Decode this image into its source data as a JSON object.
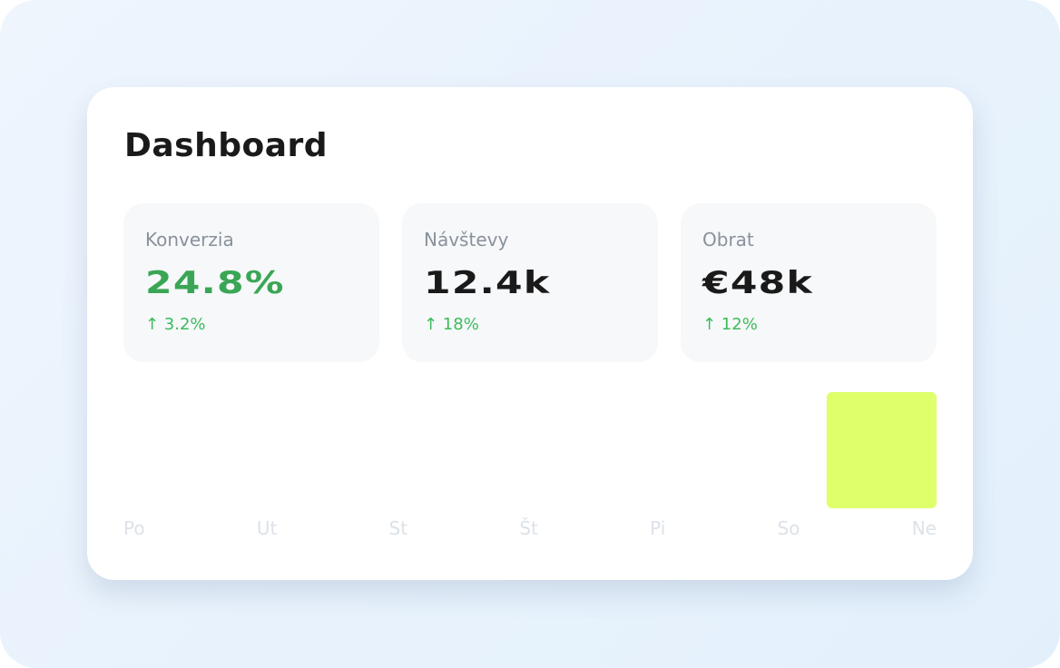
{
  "header": {
    "title": "Dashboard"
  },
  "metrics": [
    {
      "label": "Konverzia",
      "value": "24.8%",
      "change": "↑ 3.2%",
      "color": "#3aa655"
    },
    {
      "label": "Návštevy",
      "value": "12.4k",
      "change": "↑ 18%",
      "color": "#1a1a1a"
    },
    {
      "label": "Obrat",
      "value": "€48k",
      "change": "↑ 12%",
      "color": "#1a1a1a"
    }
  ],
  "chart_data": {
    "type": "bar",
    "categories": [
      "Po",
      "Ut",
      "St",
      "Št",
      "Pi",
      "So",
      "Ne"
    ],
    "values": [
      0,
      0,
      0,
      0,
      0,
      0,
      100
    ],
    "ylim": [
      0,
      100
    ],
    "color": "#dfff6b"
  }
}
